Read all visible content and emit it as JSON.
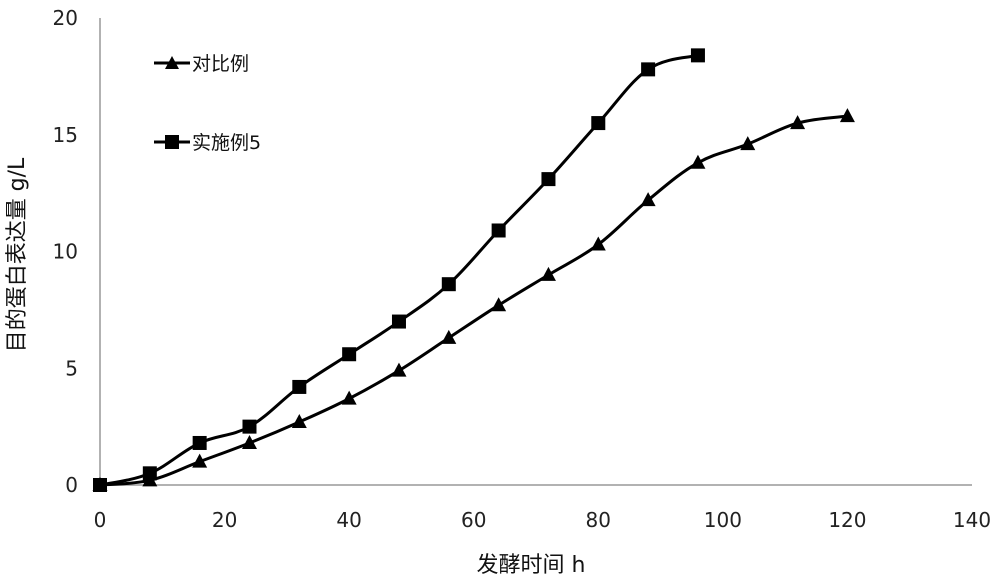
{
  "chart_data": {
    "type": "line",
    "xlabel": "发酵时间 h",
    "ylabel": "目的蛋白表达量 g/L",
    "xlim": [
      0,
      140
    ],
    "ylim": [
      0,
      20
    ],
    "xticks": [
      "0",
      "20",
      "40",
      "60",
      "80",
      "100",
      "120",
      "140"
    ],
    "yticks": [
      "0",
      "5",
      "10",
      "15",
      "20"
    ],
    "grid": false,
    "legend_position": "top-left",
    "series": [
      {
        "name": "对比例",
        "marker": "triangle",
        "color": "#000000",
        "x": [
          0,
          8,
          16,
          24,
          32,
          40,
          48,
          56,
          64,
          72,
          80,
          88,
          96,
          104,
          112,
          120
        ],
        "y": [
          0,
          0.2,
          1.0,
          1.8,
          2.7,
          3.7,
          4.9,
          6.3,
          7.7,
          9.0,
          10.3,
          12.2,
          13.8,
          14.6,
          15.5,
          15.8
        ]
      },
      {
        "name": "实施例5",
        "marker": "square",
        "color": "#000000",
        "x": [
          0,
          8,
          16,
          24,
          32,
          40,
          48,
          56,
          64,
          72,
          80,
          88,
          96
        ],
        "y": [
          0,
          0.5,
          1.8,
          2.5,
          4.2,
          5.6,
          7.0,
          8.6,
          10.9,
          13.1,
          15.5,
          17.8,
          18.4
        ]
      }
    ]
  }
}
